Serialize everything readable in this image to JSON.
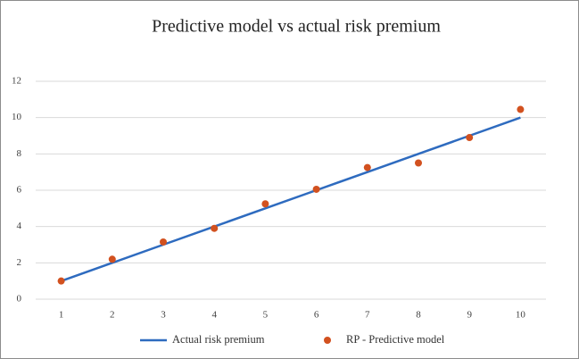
{
  "chart_data": {
    "type": "line",
    "title": "Predictive model vs actual risk premium",
    "categories": [
      1,
      2,
      3,
      4,
      5,
      6,
      7,
      8,
      9,
      10
    ],
    "series": [
      {
        "name": "Actual risk premium",
        "type": "line",
        "color": "#2e6bbf",
        "values": [
          1,
          2,
          3,
          4,
          5,
          6,
          7,
          8,
          9,
          10
        ]
      },
      {
        "name": "RP - Predictive model",
        "type": "scatter",
        "color": "#d2511f",
        "values": [
          1.0,
          2.2,
          3.15,
          3.9,
          5.25,
          6.05,
          7.25,
          7.5,
          8.9,
          10.45
        ]
      }
    ],
    "ylim": [
      0,
      12
    ],
    "yticks": [
      0,
      2,
      4,
      6,
      8,
      10,
      12
    ],
    "grid": true,
    "legend": "bottom"
  }
}
